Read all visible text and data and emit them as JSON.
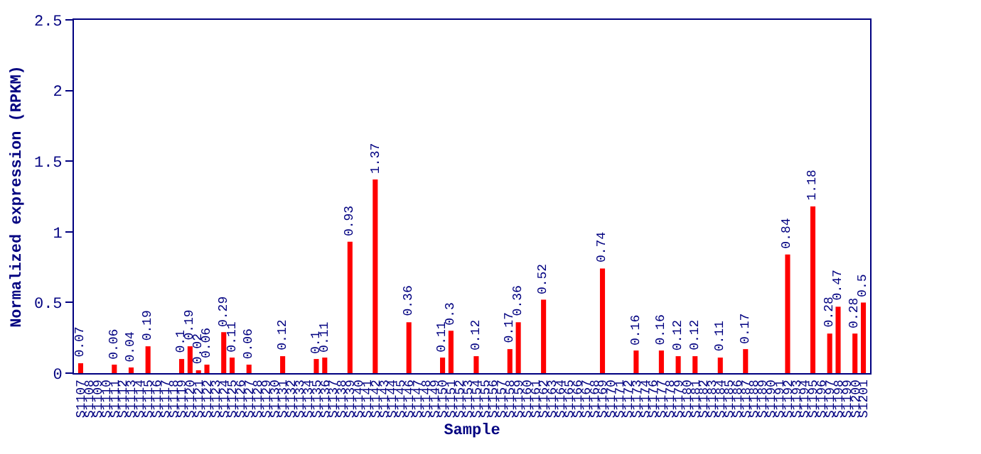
{
  "chart_data": {
    "type": "bar",
    "xlabel": "Sample",
    "ylabel": "Normalized expression (RPKM)",
    "categories": [
      "S1107",
      "S1108",
      "S1109",
      "S1110",
      "S1111",
      "S1112",
      "S1113",
      "S1114",
      "S1115",
      "S1116",
      "S1117",
      "S1118",
      "S1119",
      "S1120",
      "S1121",
      "S1122",
      "S1123",
      "S1124",
      "S1125",
      "S1126",
      "S1127",
      "S1128",
      "S1129",
      "S1130",
      "S1131",
      "S1132",
      "S1133",
      "S1134",
      "S1135",
      "S1136",
      "S1137",
      "S1138",
      "S1139",
      "S1140",
      "S1141",
      "S1142",
      "S1143",
      "S1144",
      "S1145",
      "S1146",
      "S1147",
      "S1148",
      "S1149",
      "S1150",
      "S1151",
      "S1152",
      "S1153",
      "S1154",
      "S1155",
      "S1156",
      "S1157",
      "S1158",
      "S1159",
      "S1160",
      "S1161",
      "S1162",
      "S1163",
      "S1164",
      "S1165",
      "S1166",
      "S1167",
      "S1168",
      "S1169",
      "S1170",
      "S1171",
      "S1172",
      "S1173",
      "S1174",
      "S1176",
      "S1177",
      "S1178",
      "S1179",
      "S1180",
      "S1181",
      "S1182",
      "S1183",
      "S1184",
      "S1185",
      "S1186",
      "S1187",
      "S1188",
      "S1189",
      "S1190",
      "S1191",
      "S1192",
      "S1193",
      "S1194",
      "S1195",
      "S1196",
      "S1197",
      "S1198",
      "S1199",
      "S1200",
      "S1201"
    ],
    "values": [
      0.07,
      0,
      0,
      0,
      0.06,
      0,
      0.04,
      0,
      0.19,
      0,
      0,
      0,
      0.1,
      0.19,
      0.02,
      0.06,
      0,
      0.29,
      0.11,
      0,
      0.06,
      0,
      0,
      0,
      0.12,
      0,
      0,
      0,
      0.1,
      0.11,
      0,
      0,
      0.93,
      0,
      0,
      1.37,
      0,
      0,
      0,
      0.36,
      0,
      0,
      0,
      0.11,
      0.3,
      0,
      0,
      0.12,
      0,
      0,
      0,
      0.17,
      0.36,
      0,
      0,
      0.52,
      0,
      0,
      0,
      0,
      0,
      0,
      0.74,
      0,
      0,
      0,
      0.16,
      0,
      0,
      0.16,
      0,
      0.12,
      0,
      0.12,
      0,
      0,
      0.11,
      0,
      0,
      0.17,
      0,
      0,
      0,
      0,
      0.84,
      0,
      0,
      1.18,
      0,
      0.28,
      0.47,
      0,
      0.28,
      0.5
    ],
    "value_labels": [
      "0.07",
      null,
      null,
      null,
      "0.06",
      null,
      "0.04",
      null,
      "0.19",
      null,
      null,
      null,
      "0.1",
      "0.19",
      "0.02",
      "0.06",
      null,
      "0.29",
      "0.11",
      null,
      "0.06",
      null,
      null,
      null,
      "0.12",
      null,
      null,
      null,
      "0.1",
      "0.11",
      null,
      null,
      "0.93",
      null,
      null,
      "1.37",
      null,
      null,
      null,
      "0.36",
      null,
      null,
      null,
      "0.11",
      "0.3",
      null,
      null,
      "0.12",
      null,
      null,
      null,
      "0.17",
      "0.36",
      null,
      null,
      "0.52",
      null,
      null,
      null,
      null,
      null,
      null,
      "0.74",
      null,
      null,
      null,
      "0.16",
      null,
      null,
      "0.16",
      null,
      "0.12",
      null,
      "0.12",
      null,
      null,
      "0.11",
      null,
      null,
      "0.17",
      null,
      null,
      null,
      null,
      "0.84",
      null,
      null,
      "1.18",
      null,
      "0.28",
      "0.47",
      null,
      "0.28",
      "0.5"
    ],
    "color": "#ff0000",
    "ylim": [
      0,
      2.5
    ],
    "yticks": [
      0,
      0.5,
      1,
      1.5,
      2,
      2.5
    ],
    "grid": false
  }
}
